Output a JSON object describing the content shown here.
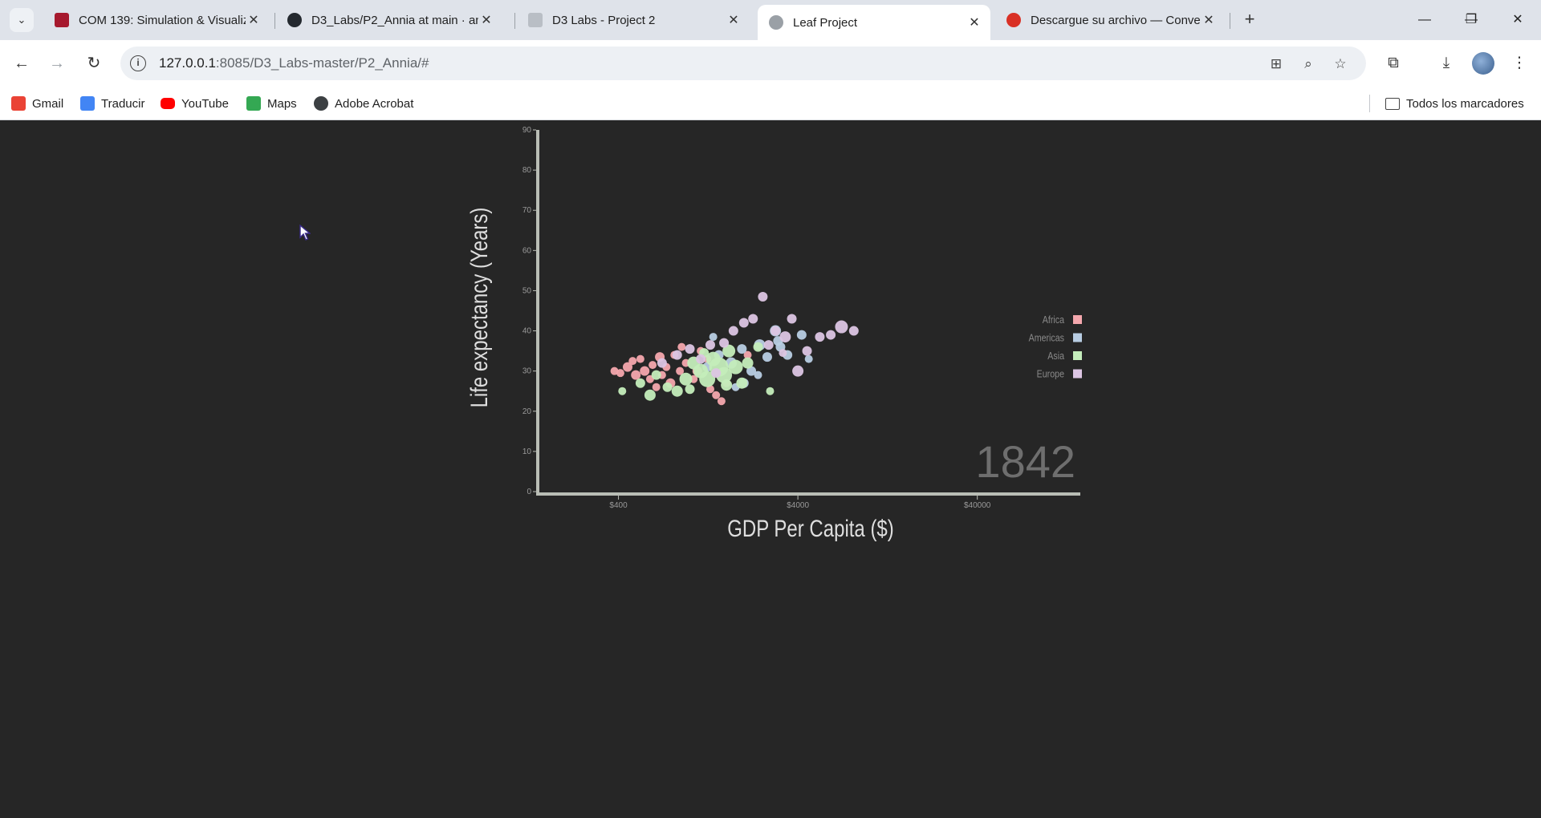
{
  "browser": {
    "tabs": [
      {
        "title": "COM 139: Simulation & Visualiz",
        "favicon_color": "#a6192e",
        "active": false
      },
      {
        "title": "D3_Labs/P2_Annia at main · anı",
        "favicon_color": "#24292f",
        "active": false
      },
      {
        "title": "D3 Labs - Project 2",
        "favicon_color": "#9aa0a6",
        "active": false
      },
      {
        "title": "Leaf Project",
        "favicon_color": "#9aa0a6",
        "active": true
      },
      {
        "title": "Descargue su archivo — Conve",
        "favicon_color": "#d93025",
        "active": false
      }
    ],
    "tab_close_glyph": "✕",
    "new_tab_glyph": "+",
    "address": {
      "host": "127.0.0.1",
      "rest": ":8085/D3_Labs-master/P2_Annia/#"
    },
    "bookmarks": [
      {
        "label": "Gmail",
        "icon": "gmail-icon",
        "color": "#ea4335"
      },
      {
        "label": "Traducir",
        "icon": "translate-icon",
        "color": "#4285f4"
      },
      {
        "label": "YouTube",
        "icon": "youtube-icon",
        "color": "#ff0000"
      },
      {
        "label": "Maps",
        "icon": "maps-icon",
        "color": "#34a853"
      },
      {
        "label": "Adobe Acrobat",
        "icon": "globe-icon",
        "color": "#3c4043"
      }
    ],
    "all_bookmarks_label": "Todos los marcadores"
  },
  "chart_data": {
    "type": "scatter",
    "year_label": "1842",
    "xlabel": "GDP Per Capita ($)",
    "ylabel": "Life expectancy (Years)",
    "x_scale": "log",
    "xlim": [
      142,
      150000
    ],
    "ylim": [
      0,
      90
    ],
    "x_ticks": [
      400,
      4000,
      40000
    ],
    "x_tick_labels": [
      "$400",
      "$4000",
      "$40000"
    ],
    "y_ticks": [
      0,
      10,
      20,
      30,
      40,
      50,
      60,
      70,
      80,
      90
    ],
    "legend_position": "right",
    "legend": [
      {
        "name": "Africa",
        "color": "#f4a7ad"
      },
      {
        "name": "Americas",
        "color": "#b8cde3"
      },
      {
        "name": "Asia",
        "color": "#c4edbb"
      },
      {
        "name": "Europe",
        "color": "#dcc5e3"
      }
    ],
    "points": [
      {
        "x": 380,
        "y": 30,
        "r": 5,
        "c": "Africa"
      },
      {
        "x": 410,
        "y": 29.5,
        "r": 5,
        "c": "Africa"
      },
      {
        "x": 450,
        "y": 31,
        "r": 6,
        "c": "Africa"
      },
      {
        "x": 480,
        "y": 32.5,
        "r": 5,
        "c": "Africa"
      },
      {
        "x": 500,
        "y": 29,
        "r": 6,
        "c": "Africa"
      },
      {
        "x": 530,
        "y": 33,
        "r": 5,
        "c": "Africa"
      },
      {
        "x": 560,
        "y": 30,
        "r": 6,
        "c": "Africa"
      },
      {
        "x": 600,
        "y": 28,
        "r": 5,
        "c": "Africa"
      },
      {
        "x": 620,
        "y": 31.5,
        "r": 5,
        "c": "Africa"
      },
      {
        "x": 650,
        "y": 26,
        "r": 5,
        "c": "Africa"
      },
      {
        "x": 680,
        "y": 33.5,
        "r": 6,
        "c": "Africa"
      },
      {
        "x": 700,
        "y": 29,
        "r": 5,
        "c": "Africa"
      },
      {
        "x": 740,
        "y": 31,
        "r": 5,
        "c": "Africa"
      },
      {
        "x": 780,
        "y": 27,
        "r": 6,
        "c": "Africa"
      },
      {
        "x": 820,
        "y": 34,
        "r": 5,
        "c": "Africa"
      },
      {
        "x": 880,
        "y": 30,
        "r": 5,
        "c": "Africa"
      },
      {
        "x": 950,
        "y": 32,
        "r": 5,
        "c": "Africa"
      },
      {
        "x": 1050,
        "y": 28,
        "r": 5,
        "c": "Africa"
      },
      {
        "x": 1150,
        "y": 35,
        "r": 5,
        "c": "Africa"
      },
      {
        "x": 1250,
        "y": 33,
        "r": 5,
        "c": "Africa"
      },
      {
        "x": 1400,
        "y": 24,
        "r": 5,
        "c": "Africa"
      },
      {
        "x": 1500,
        "y": 22.5,
        "r": 5,
        "c": "Africa"
      },
      {
        "x": 1300,
        "y": 25.5,
        "r": 5,
        "c": "Africa"
      },
      {
        "x": 2100,
        "y": 34,
        "r": 5,
        "c": "Africa"
      },
      {
        "x": 1100,
        "y": 30,
        "r": 6,
        "c": "Africa"
      },
      {
        "x": 900,
        "y": 36,
        "r": 5,
        "c": "Africa"
      },
      {
        "x": 1600,
        "y": 27,
        "r": 5,
        "c": "Africa"
      },
      {
        "x": 1250,
        "y": 31,
        "r": 6,
        "c": "Americas"
      },
      {
        "x": 1450,
        "y": 34,
        "r": 6,
        "c": "Americas"
      },
      {
        "x": 1700,
        "y": 32,
        "r": 7,
        "c": "Americas"
      },
      {
        "x": 1950,
        "y": 35.5,
        "r": 6,
        "c": "Americas"
      },
      {
        "x": 2200,
        "y": 30,
        "r": 6,
        "c": "Americas"
      },
      {
        "x": 2450,
        "y": 36.5,
        "r": 7,
        "c": "Americas"
      },
      {
        "x": 2700,
        "y": 33.5,
        "r": 6,
        "c": "Americas"
      },
      {
        "x": 3000,
        "y": 40,
        "r": 7,
        "c": "Americas"
      },
      {
        "x": 3100,
        "y": 37.5,
        "r": 6,
        "c": "Americas"
      },
      {
        "x": 3500,
        "y": 34,
        "r": 6,
        "c": "Americas"
      },
      {
        "x": 4200,
        "y": 39,
        "r": 6,
        "c": "Americas"
      },
      {
        "x": 4600,
        "y": 33,
        "r": 5,
        "c": "Americas"
      },
      {
        "x": 1350,
        "y": 38.5,
        "r": 5,
        "c": "Americas"
      },
      {
        "x": 2000,
        "y": 27,
        "r": 6,
        "c": "Americas"
      },
      {
        "x": 2400,
        "y": 29,
        "r": 5,
        "c": "Americas"
      },
      {
        "x": 1800,
        "y": 26,
        "r": 5,
        "c": "Americas"
      },
      {
        "x": 3200,
        "y": 36,
        "r": 6,
        "c": "Americas"
      },
      {
        "x": 420,
        "y": 25,
        "r": 5,
        "c": "Asia"
      },
      {
        "x": 530,
        "y": 27,
        "r": 6,
        "c": "Asia"
      },
      {
        "x": 600,
        "y": 24,
        "r": 7,
        "c": "Asia"
      },
      {
        "x": 650,
        "y": 29,
        "r": 6,
        "c": "Asia"
      },
      {
        "x": 750,
        "y": 26,
        "r": 6,
        "c": "Asia"
      },
      {
        "x": 850,
        "y": 25,
        "r": 7,
        "c": "Asia"
      },
      {
        "x": 950,
        "y": 28,
        "r": 8,
        "c": "Asia"
      },
      {
        "x": 1050,
        "y": 32,
        "r": 8,
        "c": "Asia"
      },
      {
        "x": 1150,
        "y": 30,
        "r": 9,
        "c": "Asia"
      },
      {
        "x": 1250,
        "y": 28,
        "r": 10,
        "c": "Asia"
      },
      {
        "x": 1350,
        "y": 33,
        "r": 9,
        "c": "Asia"
      },
      {
        "x": 1450,
        "y": 31,
        "r": 12,
        "c": "Asia"
      },
      {
        "x": 1550,
        "y": 29,
        "r": 10,
        "c": "Asia"
      },
      {
        "x": 1650,
        "y": 35,
        "r": 8,
        "c": "Asia"
      },
      {
        "x": 1800,
        "y": 31,
        "r": 9,
        "c": "Asia"
      },
      {
        "x": 1950,
        "y": 27,
        "r": 7,
        "c": "Asia"
      },
      {
        "x": 2100,
        "y": 32,
        "r": 7,
        "c": "Asia"
      },
      {
        "x": 2400,
        "y": 36,
        "r": 6,
        "c": "Asia"
      },
      {
        "x": 2800,
        "y": 25,
        "r": 5,
        "c": "Asia"
      },
      {
        "x": 1000,
        "y": 25.5,
        "r": 6,
        "c": "Asia"
      },
      {
        "x": 1600,
        "y": 26.5,
        "r": 7,
        "c": "Asia"
      },
      {
        "x": 1200,
        "y": 34.5,
        "r": 6,
        "c": "Asia"
      },
      {
        "x": 700,
        "y": 32,
        "r": 6,
        "c": "Europe"
      },
      {
        "x": 850,
        "y": 34,
        "r": 6,
        "c": "Europe"
      },
      {
        "x": 1000,
        "y": 35.5,
        "r": 6,
        "c": "Europe"
      },
      {
        "x": 1150,
        "y": 33,
        "r": 6,
        "c": "Europe"
      },
      {
        "x": 1300,
        "y": 36.5,
        "r": 6,
        "c": "Europe"
      },
      {
        "x": 1550,
        "y": 37,
        "r": 6,
        "c": "Europe"
      },
      {
        "x": 1750,
        "y": 40,
        "r": 6,
        "c": "Europe"
      },
      {
        "x": 2000,
        "y": 42,
        "r": 6,
        "c": "Europe"
      },
      {
        "x": 2250,
        "y": 43,
        "r": 6,
        "c": "Europe"
      },
      {
        "x": 2550,
        "y": 48.5,
        "r": 6,
        "c": "Europe"
      },
      {
        "x": 2750,
        "y": 36.5,
        "r": 6,
        "c": "Europe"
      },
      {
        "x": 3000,
        "y": 40,
        "r": 6,
        "c": "Europe"
      },
      {
        "x": 3400,
        "y": 38.5,
        "r": 7,
        "c": "Europe"
      },
      {
        "x": 3700,
        "y": 43,
        "r": 6,
        "c": "Europe"
      },
      {
        "x": 4000,
        "y": 30,
        "r": 7,
        "c": "Europe"
      },
      {
        "x": 4500,
        "y": 35,
        "r": 6,
        "c": "Europe"
      },
      {
        "x": 5300,
        "y": 38.5,
        "r": 6,
        "c": "Europe"
      },
      {
        "x": 6100,
        "y": 39,
        "r": 6,
        "c": "Europe"
      },
      {
        "x": 7000,
        "y": 41,
        "r": 8,
        "c": "Europe"
      },
      {
        "x": 8200,
        "y": 40,
        "r": 6,
        "c": "Europe"
      },
      {
        "x": 3300,
        "y": 34.5,
        "r": 5,
        "c": "Europe"
      },
      {
        "x": 1400,
        "y": 29.5,
        "r": 6,
        "c": "Europe"
      }
    ]
  }
}
